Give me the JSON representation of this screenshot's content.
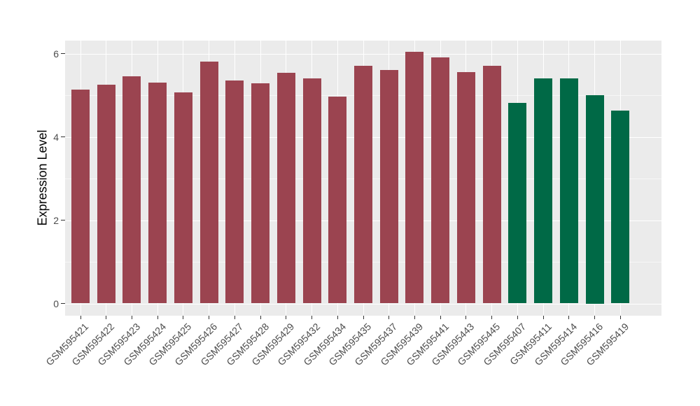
{
  "figure": {
    "background": "#FFFFFF",
    "panel_background": "#EBEBEB",
    "gridline_color": "#FFFFFF",
    "tick_color": "#333333",
    "tick_label_color": "#4D4D4D",
    "axis_title_color": "#000000"
  },
  "chart_data": {
    "type": "bar",
    "title": "",
    "ylabel": "Expression Level",
    "xlabel": "",
    "categories": [
      "GSM595421",
      "GSM595422",
      "GSM595423",
      "GSM595424",
      "GSM595425",
      "GSM595426",
      "GSM595427",
      "GSM595428",
      "GSM595429",
      "GSM595432",
      "GSM595434",
      "GSM595435",
      "GSM595437",
      "GSM595439",
      "GSM595441",
      "GSM595443",
      "GSM595445",
      "GSM595407",
      "GSM595411",
      "GSM595414",
      "GSM595416",
      "GSM595419"
    ],
    "values": [
      5.13,
      5.26,
      5.46,
      5.31,
      5.07,
      5.81,
      5.35,
      5.28,
      5.54,
      5.41,
      4.96,
      5.7,
      5.61,
      6.04,
      5.9,
      5.56,
      5.7,
      4.82,
      5.41,
      5.4,
      5.0,
      4.63
    ],
    "bar_groups": [
      "red",
      "red",
      "red",
      "red",
      "red",
      "red",
      "red",
      "red",
      "red",
      "red",
      "red",
      "red",
      "red",
      "red",
      "red",
      "red",
      "red",
      "green",
      "green",
      "green",
      "green",
      "green"
    ],
    "group_colors": {
      "red": "#9B4450",
      "green": "#006946"
    },
    "yticks": [
      0,
      2,
      4,
      6
    ],
    "yminorticks": [
      1,
      3,
      5
    ],
    "ylim": [
      -0.29,
      6.31
    ],
    "grid": "on",
    "legend": "none",
    "x_tick_rotation_deg": 45
  }
}
